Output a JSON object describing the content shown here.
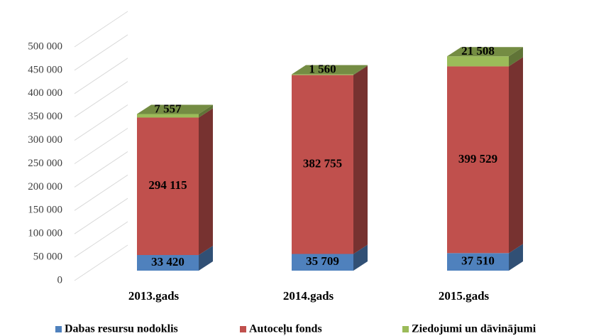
{
  "chart_data": {
    "type": "bar3d_stacked",
    "categories": [
      "2013.gads",
      "2014.gads",
      "2015.gads"
    ],
    "series": [
      {
        "name": "Dabas resursu nodoklis",
        "color": "#4f81bd",
        "values": [
          33420,
          35709,
          37510
        ],
        "value_labels": [
          "33 420",
          "35 709",
          "37 510"
        ]
      },
      {
        "name": "Autoceļu fonds",
        "color": "#c0504d",
        "values": [
          294115,
          382755,
          399529
        ],
        "value_labels": [
          "294 115",
          "382 755",
          "399 529"
        ]
      },
      {
        "name": "Ziedojumi un dāvinājumi",
        "color": "#9bbb59",
        "values": [
          7557,
          1560,
          21508
        ],
        "value_labels": [
          "7 557",
          "1 560",
          "21 508"
        ]
      }
    ],
    "ylim": [
      0,
      500000
    ],
    "yticks": [
      0,
      {
        "value": 50000,
        "label": "50 000"
      },
      {
        "value": 100000,
        "label": "100 000"
      },
      {
        "value": 150000,
        "label": "150 000"
      },
      {
        "value": 200000,
        "label": "200 000"
      },
      {
        "value": 250000,
        "label": "250 000"
      },
      {
        "value": 300000,
        "label": "300 000"
      },
      {
        "value": 350000,
        "label": "350 000"
      },
      {
        "value": 400000,
        "label": "400 000"
      },
      {
        "value": 450000,
        "label": "450 000"
      },
      {
        "value": 500000,
        "label": "500 000"
      }
    ],
    "grid": true,
    "legend": "bottom"
  }
}
